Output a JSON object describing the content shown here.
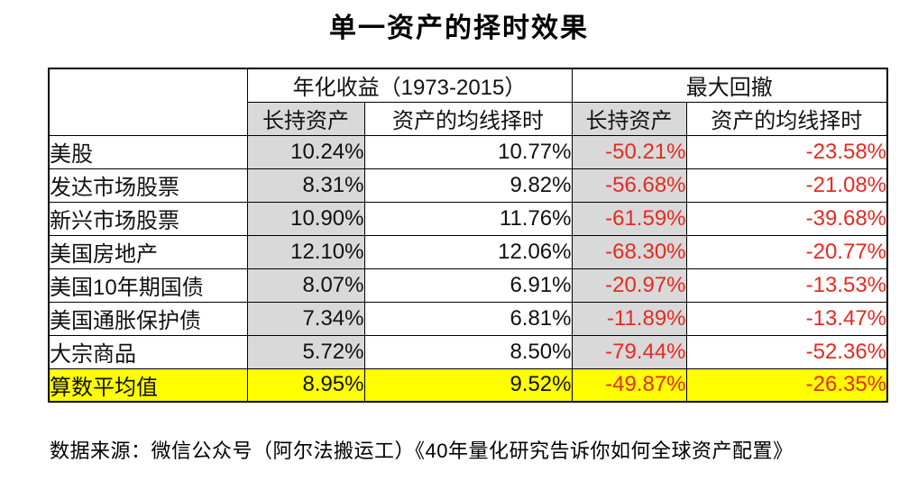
{
  "title": "单一资产的择时效果",
  "footer": {
    "source_text": "数据来源：微信公众号（阿尔法搬运工）《40年量化研究告诉你如何全球资产配置》"
  },
  "colors": {
    "column_gray": "#d9d9d9",
    "highlight_yellow": "#ffff00",
    "negative_red": "#e62a22",
    "border_black": "#000000"
  },
  "table": {
    "group_headers": [
      "年化收益（1973-2015）",
      "最大回撤"
    ],
    "sub_headers": [
      "长持资产",
      "资产的均线择时",
      "长持资产",
      "资产的均线择时"
    ],
    "rows": [
      {
        "label": "美股",
        "values": [
          "10.24%",
          "10.77%",
          "-50.21%",
          "-23.58%"
        ],
        "highlight": false
      },
      {
        "label": "发达市场股票",
        "values": [
          "8.31%",
          "9.82%",
          "-56.68%",
          "-21.08%"
        ],
        "highlight": false
      },
      {
        "label": "新兴市场股票",
        "values": [
          "10.90%",
          "11.76%",
          "-61.59%",
          "-39.68%"
        ],
        "highlight": false
      },
      {
        "label": "美国房地产",
        "values": [
          "12.10%",
          "12.06%",
          "-68.30%",
          "-20.77%"
        ],
        "highlight": false
      },
      {
        "label": "美国10年期国债",
        "values": [
          "8.07%",
          "6.91%",
          "-20.97%",
          "-13.53%"
        ],
        "highlight": false
      },
      {
        "label": "美国通胀保护债",
        "values": [
          "7.34%",
          "6.81%",
          "-11.89%",
          "-13.47%"
        ],
        "highlight": false
      },
      {
        "label": "大宗商品",
        "values": [
          "5.72%",
          "8.50%",
          "-79.44%",
          "-52.36%"
        ],
        "highlight": false
      },
      {
        "label": "算数平均值",
        "values": [
          "8.95%",
          "9.52%",
          "-49.87%",
          "-26.35%"
        ],
        "highlight": true
      }
    ]
  },
  "chart_data": {
    "type": "table",
    "title": "单一资产的择时效果",
    "column_groups": [
      "年化收益（1973-2015）",
      "最大回撤"
    ],
    "columns": [
      "资产",
      "年化收益-长持资产",
      "年化收益-资产的均线择时",
      "最大回撤-长持资产",
      "最大回撤-资产的均线择时"
    ],
    "unit": "percent",
    "rows": [
      [
        "美股",
        10.24,
        10.77,
        -50.21,
        -23.58
      ],
      [
        "发达市场股票",
        8.31,
        9.82,
        -56.68,
        -21.08
      ],
      [
        "新兴市场股票",
        10.9,
        11.76,
        -61.59,
        -39.68
      ],
      [
        "美国房地产",
        12.1,
        12.06,
        -68.3,
        -20.77
      ],
      [
        "美国10年期国债",
        8.07,
        6.91,
        -20.97,
        -13.53
      ],
      [
        "美国通胀保护债",
        7.34,
        6.81,
        -11.89,
        -13.47
      ],
      [
        "大宗商品",
        5.72,
        8.5,
        -79.44,
        -52.36
      ],
      [
        "算数平均值",
        8.95,
        9.52,
        -49.87,
        -26.35
      ]
    ],
    "source": "数据来源：微信公众号（阿尔法搬运工）《40年量化研究告诉你如何全球资产配置》"
  }
}
